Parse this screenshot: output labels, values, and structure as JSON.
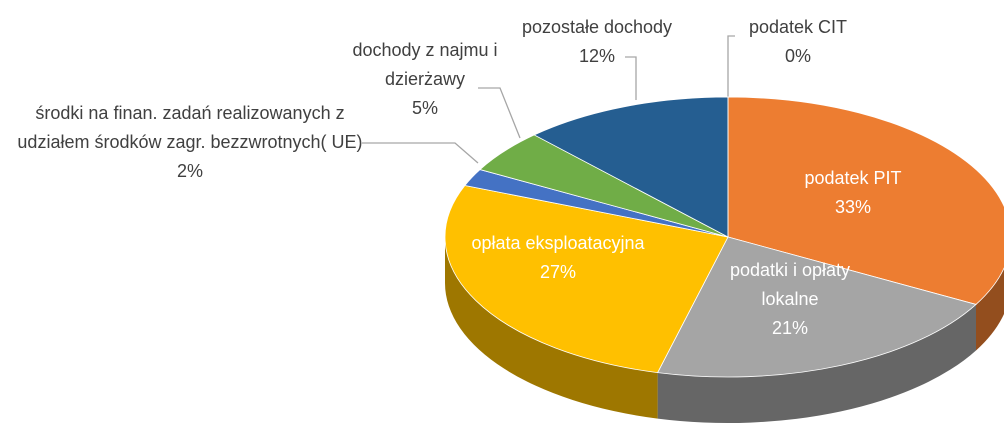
{
  "chart_data": {
    "type": "pie3d",
    "categories": [
      "podatek PIT",
      "podatki i opłaty lokalne",
      "opłata eksploatacyjna",
      "środki na finan. zadań realizowanych z udziałem środków zagr. bezzwrotnych( UE)",
      "dochody z najmu i dzierżawy",
      "pozostałe dochody",
      "podatek CIT"
    ],
    "values": [
      33,
      21,
      27,
      2,
      5,
      12,
      0
    ],
    "value_labels": [
      "33%",
      "21%",
      "27%",
      "2%",
      "5%",
      "12%",
      "0%"
    ],
    "colors": [
      "#ED7D31",
      "#A5A5A5",
      "#FFC000",
      "#4472C4",
      "#70AD47",
      "#255E91",
      "#9E480E"
    ]
  }
}
